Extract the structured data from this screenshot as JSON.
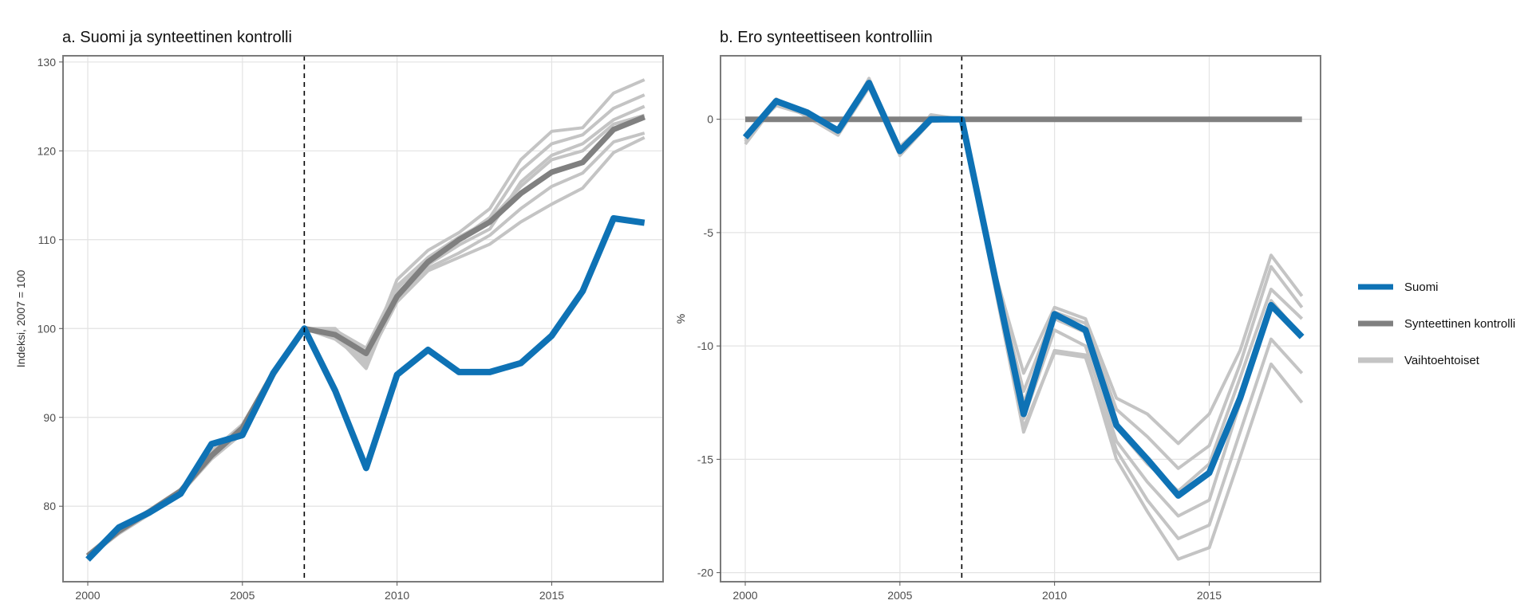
{
  "chart_data": [
    {
      "type": "line",
      "title": "a. Suomi ja synteettinen kontrolli",
      "xlabel": "",
      "ylabel": "Indeksi, 2007 = 100",
      "xlim": [
        1999.2,
        2018.6
      ],
      "ylim": [
        71.5,
        130.7
      ],
      "xticks": [
        2000,
        2005,
        2010,
        2015
      ],
      "yticks": [
        80,
        90,
        100,
        110,
        120,
        130
      ],
      "xtick_labels": [
        "2000",
        "2005",
        "2010",
        "2015"
      ],
      "ytick_labels": [
        "80",
        "90",
        "100",
        "110",
        "120",
        "130"
      ],
      "grid": true,
      "vline": 2007,
      "alternatives": [
        {
          "x": [
            2000,
            2001,
            2002,
            2003,
            2004,
            2005,
            2006,
            2007,
            2008,
            2009,
            2010,
            2011,
            2012,
            2013,
            2014,
            2015,
            2016,
            2017,
            2018
          ],
          "values": [
            74.6,
            77.5,
            79.5,
            81.8,
            86.0,
            89.0,
            95.2,
            100.0,
            100.0,
            96.5,
            105.5,
            108.8,
            110.8,
            113.5,
            119.0,
            122.2,
            122.6,
            126.5,
            128.0
          ]
        },
        {
          "x": [
            2000,
            2001,
            2002,
            2003,
            2004,
            2005,
            2006,
            2007,
            2008,
            2009,
            2010,
            2011,
            2012,
            2013,
            2014,
            2015,
            2016,
            2017,
            2018
          ],
          "values": [
            74.5,
            77.3,
            79.4,
            81.7,
            85.8,
            88.8,
            95.0,
            100.0,
            99.5,
            96.0,
            104.5,
            107.8,
            110.0,
            112.5,
            117.8,
            120.8,
            121.8,
            124.8,
            126.3
          ]
        },
        {
          "x": [
            2000,
            2001,
            2002,
            2003,
            2004,
            2005,
            2006,
            2007,
            2008,
            2009,
            2010,
            2011,
            2012,
            2013,
            2014,
            2015,
            2016,
            2017,
            2018
          ],
          "values": [
            74.4,
            77.2,
            79.3,
            81.6,
            85.6,
            88.6,
            94.9,
            100.0,
            99.2,
            95.5,
            104.0,
            107.2,
            109.4,
            111.2,
            116.5,
            119.5,
            120.8,
            123.5,
            125.0
          ]
        },
        {
          "x": [
            2000,
            2001,
            2002,
            2003,
            2004,
            2005,
            2006,
            2007,
            2008,
            2009,
            2010,
            2011,
            2012,
            2013,
            2014,
            2015,
            2016,
            2017,
            2018
          ],
          "values": [
            74.3,
            77.0,
            79.2,
            81.5,
            85.5,
            88.4,
            94.8,
            100.0,
            99.0,
            97.0,
            103.5,
            106.8,
            108.5,
            110.5,
            113.5,
            116.0,
            117.5,
            121.0,
            122.0
          ]
        },
        {
          "x": [
            2000,
            2001,
            2002,
            2003,
            2004,
            2005,
            2006,
            2007,
            2008,
            2009,
            2010,
            2011,
            2012,
            2013,
            2014,
            2015,
            2016,
            2017,
            2018
          ],
          "values": [
            74.2,
            76.9,
            79.1,
            81.4,
            85.3,
            88.2,
            94.6,
            100.0,
            98.8,
            96.2,
            103.0,
            106.5,
            108.0,
            109.5,
            112.0,
            114.0,
            115.8,
            119.8,
            121.5
          ]
        },
        {
          "x": [
            2000,
            2001,
            2002,
            2003,
            2004,
            2005,
            2006,
            2007,
            2008,
            2009,
            2010,
            2011,
            2012,
            2013,
            2014,
            2015,
            2016,
            2017,
            2018
          ],
          "values": [
            74.5,
            77.4,
            79.6,
            81.9,
            86.2,
            89.2,
            95.1,
            100.0,
            99.8,
            97.8,
            104.8,
            108.0,
            110.3,
            112.2,
            116.0,
            119.0,
            120.0,
            123.0,
            124.0
          ]
        }
      ],
      "series": [
        {
          "x": [
            2000,
            2001,
            2002,
            2003,
            2004,
            2005,
            2006,
            2007,
            2008,
            2009,
            2010,
            2011,
            2012,
            2013,
            2014,
            2015,
            2016,
            2017,
            2018
          ],
          "values": [
            74.4,
            77.2,
            79.4,
            81.7,
            85.7,
            88.8,
            95.0,
            100.0,
            99.3,
            97.2,
            103.6,
            107.5,
            110.0,
            112.0,
            115.2,
            117.6,
            118.7,
            122.4,
            123.8
          ]
        },
        {
          "x": [
            2000,
            2001,
            2002,
            2003,
            2004,
            2005,
            2006,
            2007,
            2008,
            2009,
            2010,
            2011,
            2012,
            2013,
            2014,
            2015,
            2016,
            2017,
            2018
          ],
          "values": [
            74.0,
            77.6,
            79.3,
            81.4,
            87.0,
            88.0,
            95.0,
            100.0,
            93.0,
            84.3,
            94.8,
            97.6,
            95.1,
            95.1,
            96.1,
            99.2,
            104.2,
            112.4,
            111.9
          ]
        }
      ]
    },
    {
      "type": "line",
      "title": "b. Ero synteettiseen kontrolliin",
      "xlabel": "",
      "ylabel": "%",
      "xlim": [
        1999.2,
        2018.6
      ],
      "ylim": [
        -20.4,
        2.8
      ],
      "xticks": [
        2000,
        2005,
        2010,
        2015
      ],
      "yticks": [
        0,
        -5,
        -10,
        -15,
        -20
      ],
      "xtick_labels": [
        "2000",
        "2005",
        "2010",
        "2015"
      ],
      "ytick_labels": [
        "0",
        "-5",
        "-10",
        "-15",
        "-20"
      ],
      "grid": true,
      "vline": 2007,
      "alternatives": [
        {
          "x": [
            2000,
            2001,
            2002,
            2003,
            2004,
            2005,
            2006,
            2007,
            2008,
            2009,
            2010,
            2011,
            2012,
            2013,
            2014,
            2015,
            2016,
            2017,
            2018
          ],
          "values": [
            -0.9,
            0.7,
            0.2,
            -0.6,
            1.8,
            -1.3,
            0.1,
            0.0,
            -6.4,
            -11.2,
            -8.3,
            -8.8,
            -12.3,
            -13.0,
            -14.3,
            -13.0,
            -10.2,
            -6.0,
            -7.8
          ]
        },
        {
          "x": [
            2000,
            2001,
            2002,
            2003,
            2004,
            2005,
            2006,
            2007,
            2008,
            2009,
            2010,
            2011,
            2012,
            2013,
            2014,
            2015,
            2016,
            2017,
            2018
          ],
          "values": [
            -0.8,
            0.8,
            0.3,
            -0.5,
            1.6,
            -1.5,
            0.2,
            0.0,
            -6.5,
            -12.0,
            -8.5,
            -9.0,
            -12.8,
            -14.0,
            -15.4,
            -14.4,
            -10.8,
            -6.5,
            -8.3
          ]
        },
        {
          "x": [
            2000,
            2001,
            2002,
            2003,
            2004,
            2005,
            2006,
            2007,
            2008,
            2009,
            2010,
            2011,
            2012,
            2013,
            2014,
            2015,
            2016,
            2017,
            2018
          ],
          "values": [
            -0.7,
            0.6,
            0.2,
            -0.4,
            1.5,
            -1.2,
            0.0,
            0.0,
            -6.6,
            -12.5,
            -8.8,
            -9.4,
            -13.6,
            -15.2,
            -16.4,
            -15.2,
            -11.4,
            -7.5,
            -8.8
          ]
        },
        {
          "x": [
            2000,
            2001,
            2002,
            2003,
            2004,
            2005,
            2006,
            2007,
            2008,
            2009,
            2010,
            2011,
            2012,
            2013,
            2014,
            2015,
            2016,
            2017,
            2018
          ],
          "values": [
            -1.0,
            0.9,
            0.1,
            -0.7,
            1.4,
            -1.6,
            -0.1,
            0.0,
            -6.7,
            -13.2,
            -9.3,
            -10.0,
            -14.2,
            -16.0,
            -17.5,
            -16.8,
            -12.5,
            -8.0,
            -9.6
          ]
        },
        {
          "x": [
            2000,
            2001,
            2002,
            2003,
            2004,
            2005,
            2006,
            2007,
            2008,
            2009,
            2010,
            2011,
            2012,
            2013,
            2014,
            2015,
            2016,
            2017,
            2018
          ],
          "values": [
            -1.1,
            0.7,
            0.3,
            -0.6,
            1.7,
            -1.4,
            0.1,
            0.0,
            -6.8,
            -13.6,
            -10.3,
            -10.5,
            -14.6,
            -16.8,
            -18.5,
            -17.9,
            -13.8,
            -9.7,
            -11.2
          ]
        },
        {
          "x": [
            2000,
            2001,
            2002,
            2003,
            2004,
            2005,
            2006,
            2007,
            2008,
            2009,
            2010,
            2011,
            2012,
            2013,
            2014,
            2015,
            2016,
            2017,
            2018
          ],
          "values": [
            -0.9,
            0.8,
            0.2,
            -0.5,
            1.5,
            -1.3,
            0.0,
            0.0,
            -6.9,
            -13.8,
            -10.2,
            -10.4,
            -15.0,
            -17.3,
            -19.4,
            -18.9,
            -14.9,
            -10.8,
            -12.5
          ]
        }
      ],
      "series": [
        {
          "x": [
            2000,
            2018
          ],
          "values": [
            0.0,
            0.0
          ]
        },
        {
          "x": [
            2000,
            2001,
            2002,
            2003,
            2004,
            2005,
            2006,
            2007,
            2008,
            2009,
            2010,
            2011,
            2012,
            2013,
            2014,
            2015,
            2016,
            2017,
            2018
          ],
          "values": [
            -0.8,
            0.8,
            0.3,
            -0.5,
            1.6,
            -1.4,
            0.0,
            0.0,
            -6.5,
            -13.0,
            -8.6,
            -9.3,
            -13.5,
            -15.0,
            -16.6,
            -15.6,
            -12.3,
            -8.2,
            -9.6
          ]
        }
      ]
    }
  ],
  "legend": {
    "placement": "right",
    "items": [
      {
        "label": "Suomi",
        "color": "#0e72b5",
        "width": 7
      },
      {
        "label": "Synteettinen kontrolli",
        "color": "#808080",
        "width": 7
      },
      {
        "label": "Vaihtoehtoiset",
        "color": "#c4c4c4",
        "width": 7
      }
    ]
  },
  "colors": {
    "suomi": "#0e72b5",
    "synthetic": "#808080",
    "alternative": "#c4c4c4",
    "vline": "#000000"
  }
}
